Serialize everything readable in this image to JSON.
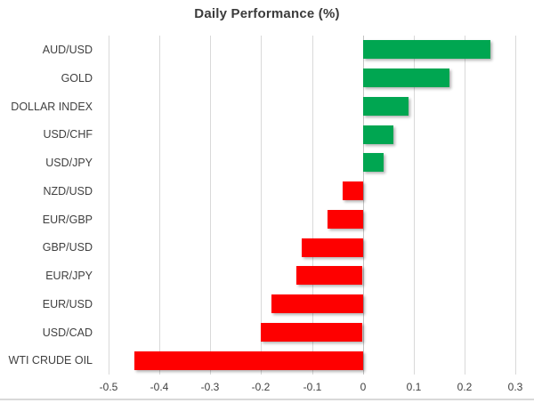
{
  "chart_data": {
    "type": "bar",
    "orientation": "horizontal",
    "title": "Daily Performance (%)",
    "categories": [
      "AUD/USD",
      "GOLD",
      "DOLLAR INDEX",
      "USD/CHF",
      "USD/JPY",
      "NZD/USD",
      "EUR/GBP",
      "GBP/USD",
      "EUR/JPY",
      "EUR/USD",
      "USD/CAD",
      "WTI CRUDE OIL"
    ],
    "values": [
      0.25,
      0.17,
      0.09,
      0.06,
      0.04,
      -0.04,
      -0.07,
      -0.12,
      -0.13,
      -0.18,
      -0.2,
      -0.45
    ],
    "xlim": [
      -0.5,
      0.3
    ],
    "x_ticks": [
      -0.5,
      -0.4,
      -0.3,
      -0.2,
      -0.1,
      0,
      0.1,
      0.2,
      0.3
    ],
    "x_tick_labels": [
      "-0.5",
      "-0.4",
      "-0.3",
      "-0.2",
      "-0.1",
      "0",
      "0.1",
      "0.2",
      "0.3"
    ],
    "grid": true,
    "legend": "none",
    "colors": {
      "positive": "#00a651",
      "negative": "#fe0000",
      "gridline": "#d9d9d9",
      "zero_line": "#c4c4c4",
      "title_text": "#3b3b3b",
      "label_text": "#404040"
    }
  }
}
